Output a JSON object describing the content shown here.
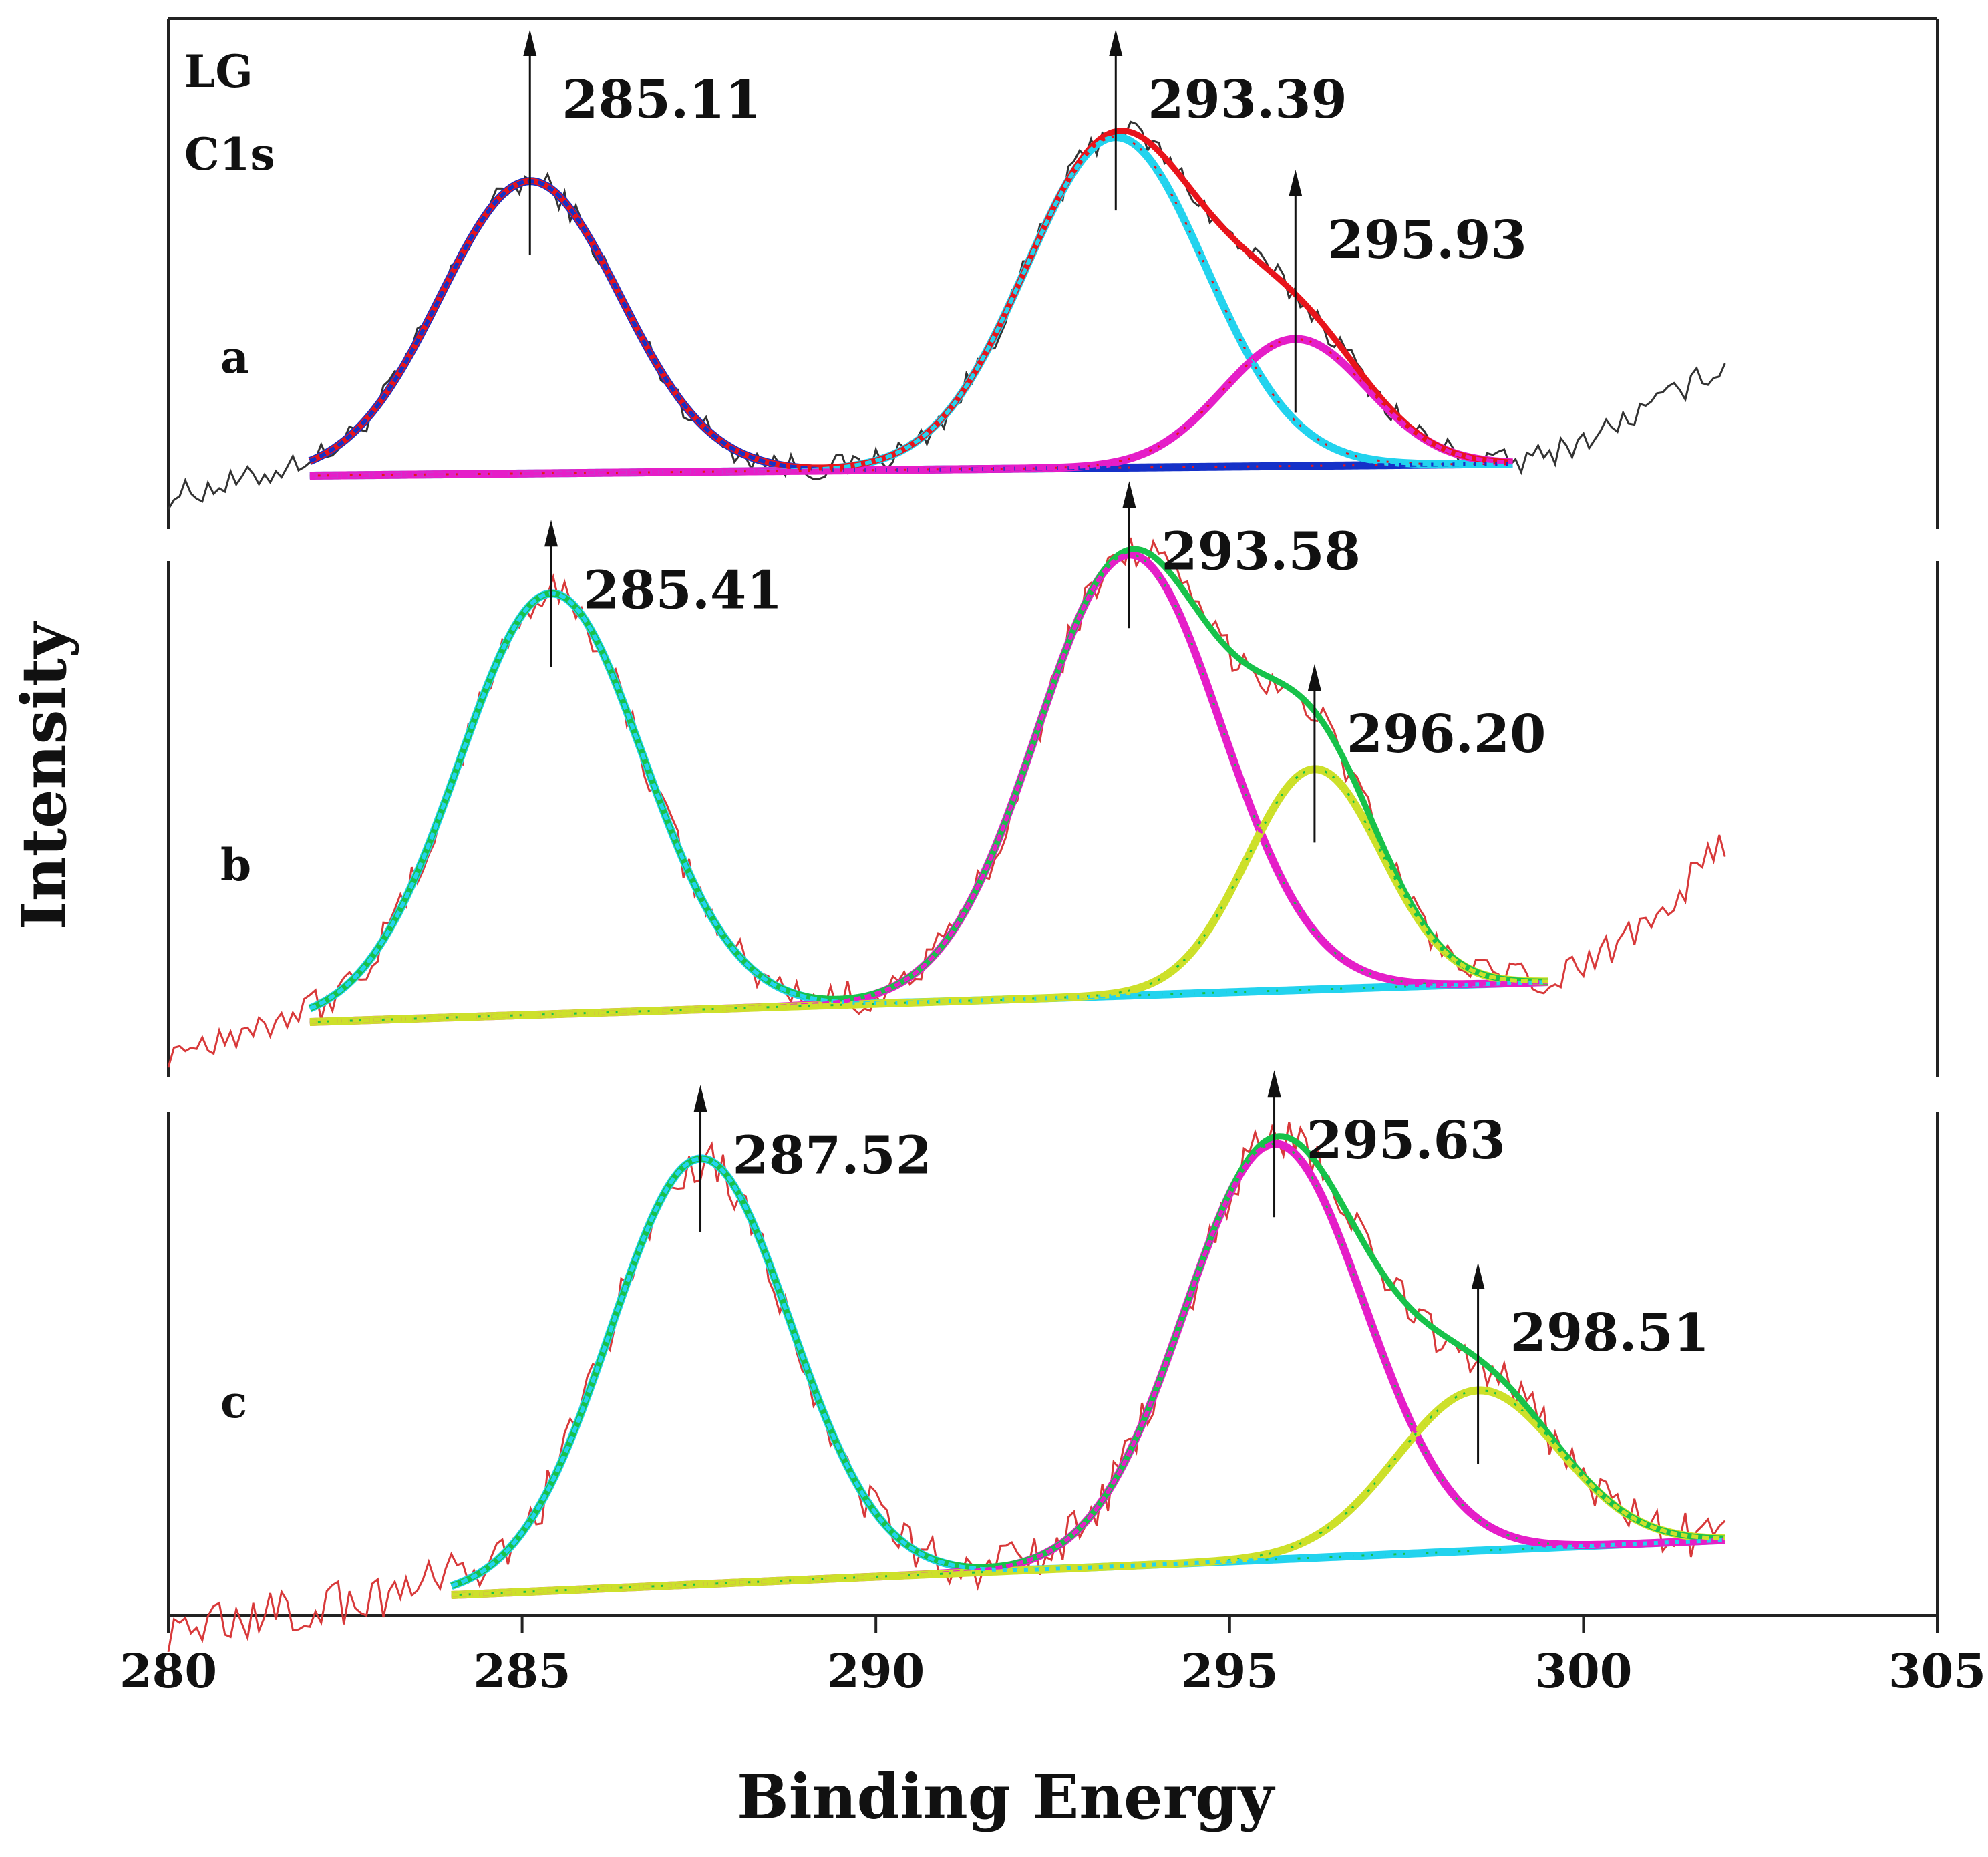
{
  "chart_data": {
    "type": "line",
    "title": "",
    "xlabel": "Binding Energy",
    "ylabel": "Intensity",
    "xlim": [
      280,
      305
    ],
    "xticks": [
      "280",
      "285",
      "290",
      "295",
      "300",
      "305"
    ],
    "sample_label": "LG",
    "region_label": "C1s",
    "panels": [
      {
        "label": "a",
        "raw_color": "#333333",
        "envelope_color": "#e8141b",
        "raw_range": [
          280,
          302
        ],
        "fit_range": [
          282,
          299
        ],
        "background": [
          0.0,
          0.04
        ],
        "peaks": [
          {
            "center": 285.11,
            "label": "285.11",
            "height": 0.99,
            "sigma": 1.27,
            "color": "#1531c8"
          },
          {
            "center": 293.39,
            "label": "293.39",
            "height": 1.12,
            "sigma": 1.27,
            "color": "#22d3ee"
          },
          {
            "center": 295.93,
            "label": "295.93",
            "height": 0.43,
            "sigma": 1.02,
            "color": "#e51ec8"
          }
        ]
      },
      {
        "label": "b",
        "raw_color": "#d8393a",
        "envelope_color": "#17c24a",
        "raw_range": [
          280,
          302
        ],
        "fit_range": [
          282,
          299.5
        ],
        "background": [
          0.0,
          0.1
        ],
        "peaks": [
          {
            "center": 285.41,
            "label": "285.41",
            "height": 1.05,
            "sigma": 1.3,
            "color": "#22d3ee"
          },
          {
            "center": 293.58,
            "label": "293.58",
            "height": 1.1,
            "sigma": 1.3,
            "color": "#e51ec8"
          },
          {
            "center": 296.2,
            "label": "296.20",
            "height": 0.55,
            "sigma": 0.95,
            "color": "#cde02a"
          }
        ]
      },
      {
        "label": "c",
        "raw_color": "#d8393a",
        "envelope_color": "#17c24a",
        "raw_range": [
          280,
          302
        ],
        "fit_range": [
          284,
          302
        ],
        "background": [
          0.0,
          0.11
        ],
        "peaks": [
          {
            "center": 287.52,
            "label": "287.52",
            "height": 0.85,
            "sigma": 1.27,
            "color": "#22d3ee"
          },
          {
            "center": 295.63,
            "label": "295.63",
            "height": 0.83,
            "sigma": 1.27,
            "color": "#e51ec8"
          },
          {
            "center": 298.51,
            "label": "298.51",
            "height": 0.32,
            "sigma": 1.15,
            "color": "#cde02a"
          }
        ]
      }
    ]
  }
}
